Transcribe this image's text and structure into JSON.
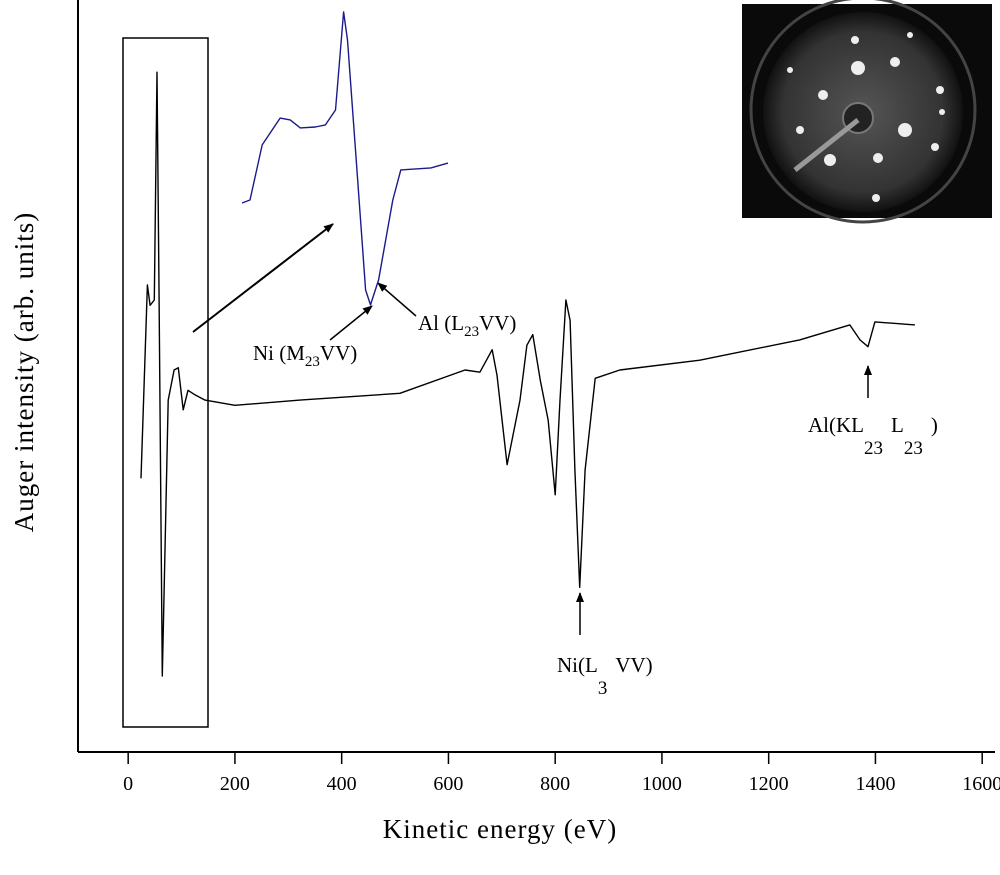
{
  "chart_data": [
    {
      "type": "line",
      "xlabel": "Kinetic energy (eV)",
      "ylabel": "Auger intensity (arb. units)",
      "xlim": [
        -94,
        1624
      ],
      "ylim": [
        0,
        100
      ],
      "xticks": [
        0,
        200,
        400,
        600,
        800,
        1000,
        1200,
        1400,
        1600
      ],
      "series": [
        {
          "color": "#000000",
          "x": [
            24,
            36,
            41,
            49,
            54,
            58,
            64,
            75,
            86,
            94,
            103,
            112,
            125,
            144,
            200,
            322,
            509,
            631,
            659,
            682,
            691,
            710,
            734,
            747,
            758,
            772,
            787,
            800,
            809,
            820,
            828,
            837,
            846,
            856,
            875,
            921,
            1071,
            1258,
            1352,
            1371,
            1386,
            1399,
            1474
          ],
          "values": [
            36.4,
            62.1,
            59.4,
            60.1,
            90.4,
            60.1,
            10.1,
            46.8,
            50.8,
            51.1,
            45.5,
            48.1,
            47.5,
            46.8,
            46.1,
            46.8,
            47.7,
            50.8,
            50.5,
            53.5,
            50.1,
            38.2,
            46.8,
            54.1,
            55.5,
            49.5,
            44.1,
            34.2,
            46.8,
            60.1,
            57.4,
            37.5,
            21.9,
            37.5,
            49.7,
            50.8,
            52.1,
            54.8,
            56.8,
            54.8,
            53.9,
            57.2,
            56.8
          ]
        }
      ],
      "annotations": [
        {
          "parts": [
            "Ni (M",
            "23",
            "VV)"
          ]
        },
        {
          "parts": [
            "Al (L",
            "23",
            "VV)"
          ]
        },
        {
          "parts": [
            "Ni(L",
            "3",
            "VV)"
          ]
        },
        {
          "parts": [
            "Al(KL",
            "23",
            "L",
            "23",
            ")"
          ]
        }
      ]
    },
    {
      "type": "line",
      "xlim": [
        0,
        100
      ],
      "ylim": [
        0,
        100
      ],
      "series": [
        {
          "color": "#1a1a8c",
          "x": [
            0,
            3.9,
            9.8,
            18.5,
            23.4,
            28.3,
            35.6,
            40.5,
            45.4,
            49.3,
            51.2,
            55.1,
            60,
            62.4,
            66.3,
            73.2,
            77.1,
            91.7,
            100
          ],
          "values": [
            35.9,
            36.9,
            55.4,
            64.4,
            63.8,
            61.1,
            61.4,
            62.1,
            67.1,
            100,
            90.6,
            53.7,
            6.7,
            1.7,
            10.1,
            36.9,
            47,
            47.7,
            49.3
          ]
        }
      ]
    }
  ]
}
